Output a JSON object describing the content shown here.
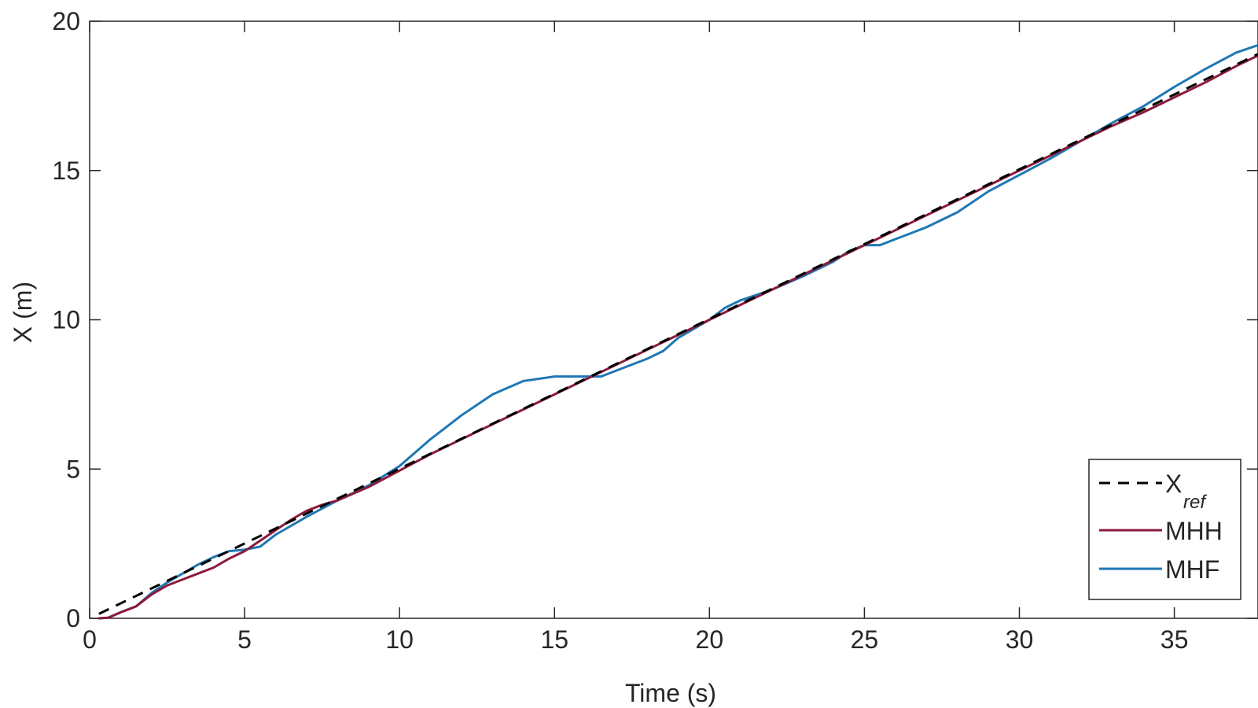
{
  "chart_data": {
    "type": "line",
    "title": "",
    "xlabel": "Time (s)",
    "ylabel": "X (m)",
    "xlim": [
      0,
      37.7
    ],
    "ylim": [
      0,
      20
    ],
    "grid": false,
    "legend_position": "bottom-right",
    "x_ticks": [
      0,
      5,
      10,
      15,
      20,
      25,
      30,
      35
    ],
    "y_ticks": [
      0,
      5,
      10,
      15,
      20
    ],
    "series": [
      {
        "key": "xref",
        "name": "X",
        "name_subscript": "ref",
        "color": "#000000",
        "style": "dashed",
        "x": [
          0.3,
          37.7
        ],
        "y": [
          0.15,
          18.9
        ]
      },
      {
        "key": "mhh",
        "name": "MHH",
        "color": "#8b1a3a",
        "style": "solid",
        "x": [
          0.3,
          0.6,
          1.0,
          1.5,
          2.0,
          2.5,
          3.0,
          3.5,
          4.0,
          4.5,
          5.0,
          5.5,
          6.0,
          6.5,
          7.0,
          7.5,
          8.0,
          9.0,
          10.0,
          11.0,
          12.0,
          13.0,
          14.0,
          15.0,
          16.0,
          17.0,
          18.0,
          19.0,
          20.0,
          21.0,
          22.0,
          23.0,
          24.0,
          25.0,
          26.0,
          27.0,
          28.0,
          29.0,
          30.0,
          31.0,
          32.0,
          33.0,
          34.0,
          35.0,
          36.0,
          37.0,
          37.7
        ],
        "y": [
          0.0,
          0.02,
          0.2,
          0.4,
          0.8,
          1.1,
          1.3,
          1.5,
          1.7,
          2.0,
          2.25,
          2.6,
          2.95,
          3.3,
          3.6,
          3.8,
          3.95,
          4.4,
          4.95,
          5.5,
          6.0,
          6.5,
          7.0,
          7.5,
          8.0,
          8.5,
          9.0,
          9.5,
          10.0,
          10.5,
          11.0,
          11.5,
          12.0,
          12.5,
          13.0,
          13.5,
          14.0,
          14.5,
          15.0,
          15.5,
          16.0,
          16.5,
          16.95,
          17.45,
          17.95,
          18.5,
          18.85
        ]
      },
      {
        "key": "mhf",
        "name": "MHF",
        "color": "#1f77b4",
        "style": "solid",
        "x": [
          0.3,
          0.6,
          1.0,
          1.5,
          2.0,
          2.5,
          3.0,
          3.5,
          4.0,
          4.5,
          5.0,
          5.5,
          6.0,
          7.0,
          8.0,
          9.0,
          10.0,
          11.0,
          12.0,
          13.0,
          14.0,
          15.0,
          16.0,
          16.5,
          17.0,
          18.0,
          18.5,
          19.0,
          20.0,
          20.5,
          21.0,
          22.0,
          23.0,
          24.0,
          24.5,
          25.0,
          25.5,
          26.0,
          27.0,
          28.0,
          29.0,
          30.0,
          31.0,
          32.0,
          33.0,
          34.0,
          35.0,
          36.0,
          37.0,
          37.7
        ],
        "y": [
          0.0,
          0.02,
          0.2,
          0.4,
          0.85,
          1.2,
          1.5,
          1.8,
          2.05,
          2.25,
          2.3,
          2.4,
          2.8,
          3.4,
          3.95,
          4.45,
          5.1,
          6.0,
          6.8,
          7.5,
          7.95,
          8.1,
          8.1,
          8.1,
          8.3,
          8.7,
          8.95,
          9.4,
          10.0,
          10.4,
          10.65,
          11.0,
          11.45,
          11.95,
          12.3,
          12.5,
          12.5,
          12.7,
          13.1,
          13.6,
          14.3,
          14.85,
          15.4,
          16.0,
          16.6,
          17.15,
          17.8,
          18.4,
          18.95,
          19.2
        ]
      }
    ]
  }
}
